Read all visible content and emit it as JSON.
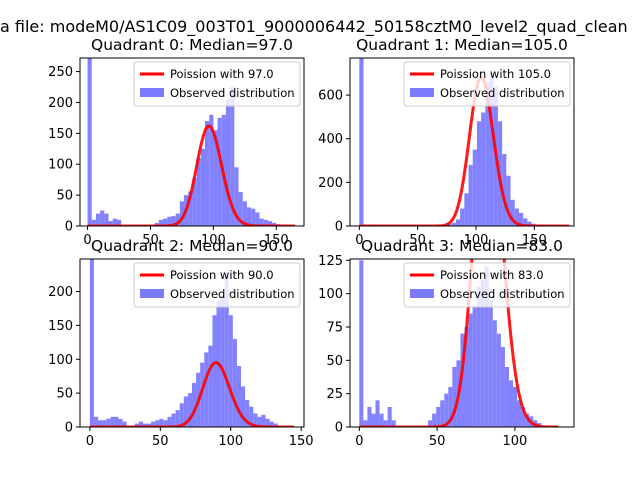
{
  "figure": {
    "suptitle": "a file: modeM0/AS1C09_003T01_9000006442_50158cztM0_level2_quad_clean"
  },
  "chart_data": [
    {
      "type": "histogram+line",
      "title": "Quadrant 0: Median=97.0",
      "xlim": [
        -6,
        172
      ],
      "ylim": [
        0,
        272
      ],
      "xticks": [
        0,
        50,
        100,
        150
      ],
      "yticks": [
        0,
        50,
        100,
        150,
        200,
        250
      ],
      "bin_width": 3.33,
      "bins": [
        0,
        3.33,
        6.67,
        10,
        13.33,
        16.67,
        20,
        23.33,
        26.67,
        30,
        33.33,
        36.67,
        40,
        43.33,
        46.67,
        50,
        53.33,
        56.67,
        60,
        63.33,
        66.67,
        70,
        73.33,
        76.67,
        80,
        83.33,
        86.67,
        90,
        93.33,
        96.67,
        100,
        103.33,
        106.67,
        110,
        113.33,
        116.67,
        120,
        123.33,
        126.67,
        130,
        133.33,
        136.67,
        140,
        143.33,
        146.67,
        150,
        153.33,
        156.67,
        160,
        163.33
      ],
      "counts": [
        272,
        10,
        20,
        25,
        20,
        8,
        12,
        10,
        0,
        0,
        0,
        0,
        0,
        0,
        0,
        0,
        5,
        10,
        12,
        15,
        16,
        20,
        40,
        50,
        56,
        78,
        110,
        125,
        170,
        180,
        155,
        175,
        180,
        205,
        225,
        95,
        55,
        40,
        30,
        28,
        22,
        12,
        10,
        8,
        5,
        3,
        0,
        0,
        0,
        0
      ],
      "poisson_mean": 97.0,
      "poisson_scale": 4000,
      "curve_range": [
        0,
        165
      ],
      "legend": [
        "Poission with 97.0",
        "Observed distribution"
      ]
    },
    {
      "type": "histogram+line",
      "title": "Quadrant 1: Median=105.0",
      "xlim": [
        -8,
        184
      ],
      "ylim": [
        0,
        770
      ],
      "xticks": [
        0,
        50,
        100,
        150
      ],
      "yticks": [
        0,
        200,
        400,
        600
      ],
      "bin_width": 3.6,
      "bins": [
        0,
        3.6,
        7.2,
        10.8,
        14.4,
        18,
        21.6,
        25.2,
        28.8,
        32.4,
        36,
        39.6,
        43.2,
        46.8,
        50.4,
        54,
        57.6,
        61.2,
        64.8,
        68.4,
        72,
        75.6,
        79.2,
        82.8,
        86.4,
        90,
        93.6,
        97.2,
        100.8,
        104.4,
        108,
        111.6,
        115.2,
        118.8,
        122.4,
        126,
        129.6,
        133.2,
        136.8,
        140.4,
        144,
        147.6,
        151.2,
        154.8,
        158.4,
        162,
        165.6,
        169.2,
        172.8,
        176.4
      ],
      "counts": [
        770,
        5,
        5,
        3,
        2,
        0,
        0,
        0,
        0,
        0,
        0,
        0,
        0,
        0,
        0,
        0,
        0,
        0,
        0,
        3,
        5,
        8,
        15,
        30,
        80,
        150,
        280,
        350,
        480,
        520,
        660,
        700,
        640,
        480,
        330,
        230,
        120,
        80,
        60,
        35,
        20,
        10,
        5,
        3,
        0,
        0,
        0,
        0,
        0,
        0
      ],
      "poisson_mean": 105.0,
      "poisson_scale": 17500,
      "curve_range": [
        0,
        180
      ],
      "legend": [
        "Poission with 105.0",
        "Observed distribution"
      ]
    },
    {
      "type": "histogram+line",
      "title": "Quadrant 2: Median=90.0",
      "xlim": [
        -7,
        152
      ],
      "ylim": [
        0,
        248
      ],
      "xticks": [
        0,
        50,
        100,
        150
      ],
      "yticks": [
        0,
        50,
        100,
        150,
        200
      ],
      "bin_width": 2.9,
      "bins": [
        0,
        2.9,
        5.8,
        8.7,
        11.6,
        14.5,
        17.4,
        20.3,
        23.2,
        26.1,
        29,
        31.9,
        34.8,
        37.7,
        40.6,
        43.5,
        46.4,
        49.3,
        52.2,
        55.1,
        58,
        60.9,
        63.8,
        66.7,
        69.6,
        72.5,
        75.4,
        78.3,
        81.2,
        84.1,
        87,
        89.9,
        92.8,
        95.7,
        98.6,
        101.5,
        104.4,
        107.3,
        110.2,
        113.1,
        116,
        118.9,
        121.8,
        124.7,
        127.6,
        130.5,
        133.4,
        136.3,
        139.2,
        142.1
      ],
      "counts": [
        248,
        15,
        10,
        10,
        12,
        15,
        15,
        12,
        8,
        0,
        0,
        5,
        8,
        5,
        5,
        8,
        10,
        12,
        10,
        15,
        20,
        25,
        35,
        45,
        50,
        65,
        80,
        95,
        110,
        120,
        165,
        185,
        195,
        225,
        165,
        130,
        90,
        60,
        40,
        30,
        20,
        15,
        18,
        12,
        8,
        5,
        0,
        0,
        0,
        0
      ],
      "poisson_mean": 90.0,
      "poisson_scale": 2260,
      "curve_range": [
        0,
        145
      ],
      "legend": [
        "Poission with 90.0",
        "Observed distribution"
      ]
    },
    {
      "type": "histogram+line",
      "title": "Quadrant 3: Median=83.0",
      "xlim": [
        -6,
        138
      ],
      "ylim": [
        0,
        126
      ],
      "xticks": [
        0,
        50,
        100
      ],
      "yticks": [
        0,
        25,
        50,
        75,
        100,
        125
      ],
      "bin_width": 2.6,
      "bins": [
        0,
        2.6,
        5.2,
        7.8,
        10.4,
        13,
        15.6,
        18.2,
        20.8,
        23.4,
        26,
        28.6,
        31.2,
        33.8,
        36.4,
        39,
        41.6,
        44.2,
        46.8,
        49.4,
        52,
        54.6,
        57.2,
        59.8,
        62.4,
        65,
        67.6,
        70.2,
        72.8,
        75.4,
        78,
        80.6,
        83.2,
        85.8,
        88.4,
        91,
        93.6,
        96.2,
        98.8,
        101.4,
        104,
        106.6,
        109.2,
        111.8,
        114.4,
        117,
        119.6,
        122.2,
        124.8,
        127.4
      ],
      "counts": [
        125,
        5,
        15,
        10,
        20,
        10,
        5,
        15,
        5,
        0,
        0,
        0,
        0,
        0,
        0,
        0,
        0,
        5,
        10,
        15,
        20,
        25,
        30,
        45,
        50,
        70,
        75,
        85,
        90,
        105,
        110,
        120,
        95,
        80,
        70,
        60,
        45,
        35,
        30,
        20,
        15,
        10,
        8,
        5,
        3,
        0,
        0,
        0,
        0,
        0
      ],
      "poisson_mean": 83.0,
      "poisson_scale": 5500,
      "curve_range": [
        0,
        128
      ],
      "legend": [
        "Poission with 83.0",
        "Observed distribution"
      ]
    }
  ],
  "colors": {
    "hist": "#7b7bff",
    "curve": "#ff0000",
    "axis": "#000000"
  }
}
